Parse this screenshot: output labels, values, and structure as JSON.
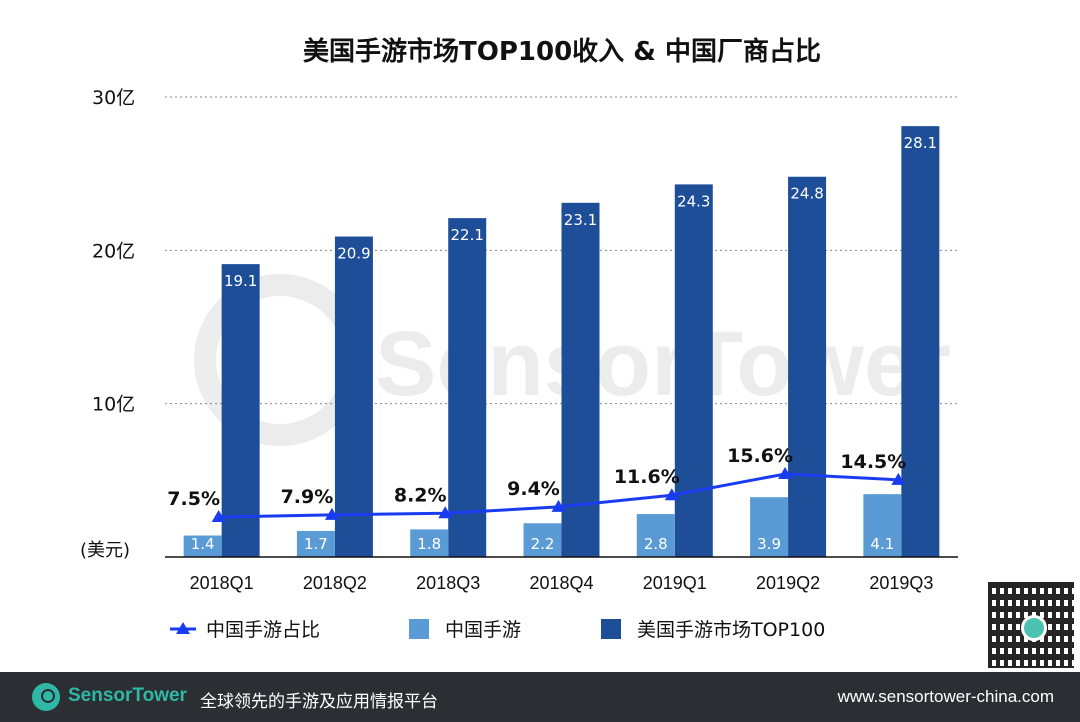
{
  "chart_data": {
    "type": "bar",
    "title": "美国手游市场TOP100收入 & 中国厂商占比",
    "unit_label": "(美元)",
    "categories": [
      "2018Q1",
      "2018Q2",
      "2018Q3",
      "2018Q4",
      "2019Q1",
      "2019Q2",
      "2019Q3"
    ],
    "y_ticks": [
      {
        "value": 10,
        "label": "10亿"
      },
      {
        "value": 20,
        "label": "20亿"
      },
      {
        "value": 30,
        "label": "30亿"
      }
    ],
    "ylim": [
      0,
      30
    ],
    "series": [
      {
        "name": "中国手游",
        "kind": "bar",
        "color": "#5b9bd5",
        "values": [
          1.4,
          1.7,
          1.8,
          2.2,
          2.8,
          3.9,
          4.1
        ],
        "labels": [
          "1.4",
          "1.7",
          "1.8",
          "2.2",
          "2.8",
          "3.9",
          "4.1"
        ]
      },
      {
        "name": "美国手游市场TOP100",
        "kind": "bar",
        "color": "#1f4e99",
        "values": [
          19.1,
          20.9,
          22.1,
          23.1,
          24.3,
          24.8,
          28.1
        ],
        "labels": [
          "19.1",
          "20.9",
          "22.1",
          "23.1",
          "24.3",
          "24.8",
          "28.1"
        ]
      },
      {
        "name": "中国手游占比",
        "kind": "line",
        "color": "#1a3cf0",
        "values": [
          7.5,
          7.9,
          8.2,
          9.4,
          11.6,
          15.6,
          14.5
        ],
        "labels": [
          "7.5%",
          "7.9%",
          "8.2%",
          "9.4%",
          "11.6%",
          "15.6%",
          "14.5%"
        ]
      }
    ],
    "legend": [
      "中国手游占比",
      "中国手游",
      "美国手游市场TOP100"
    ],
    "watermark": "SensorTower"
  },
  "footer": {
    "brand": "SensorTower",
    "tagline": "全球领先的手游及应用情报平台",
    "url": "www.sensortower-china.com"
  }
}
